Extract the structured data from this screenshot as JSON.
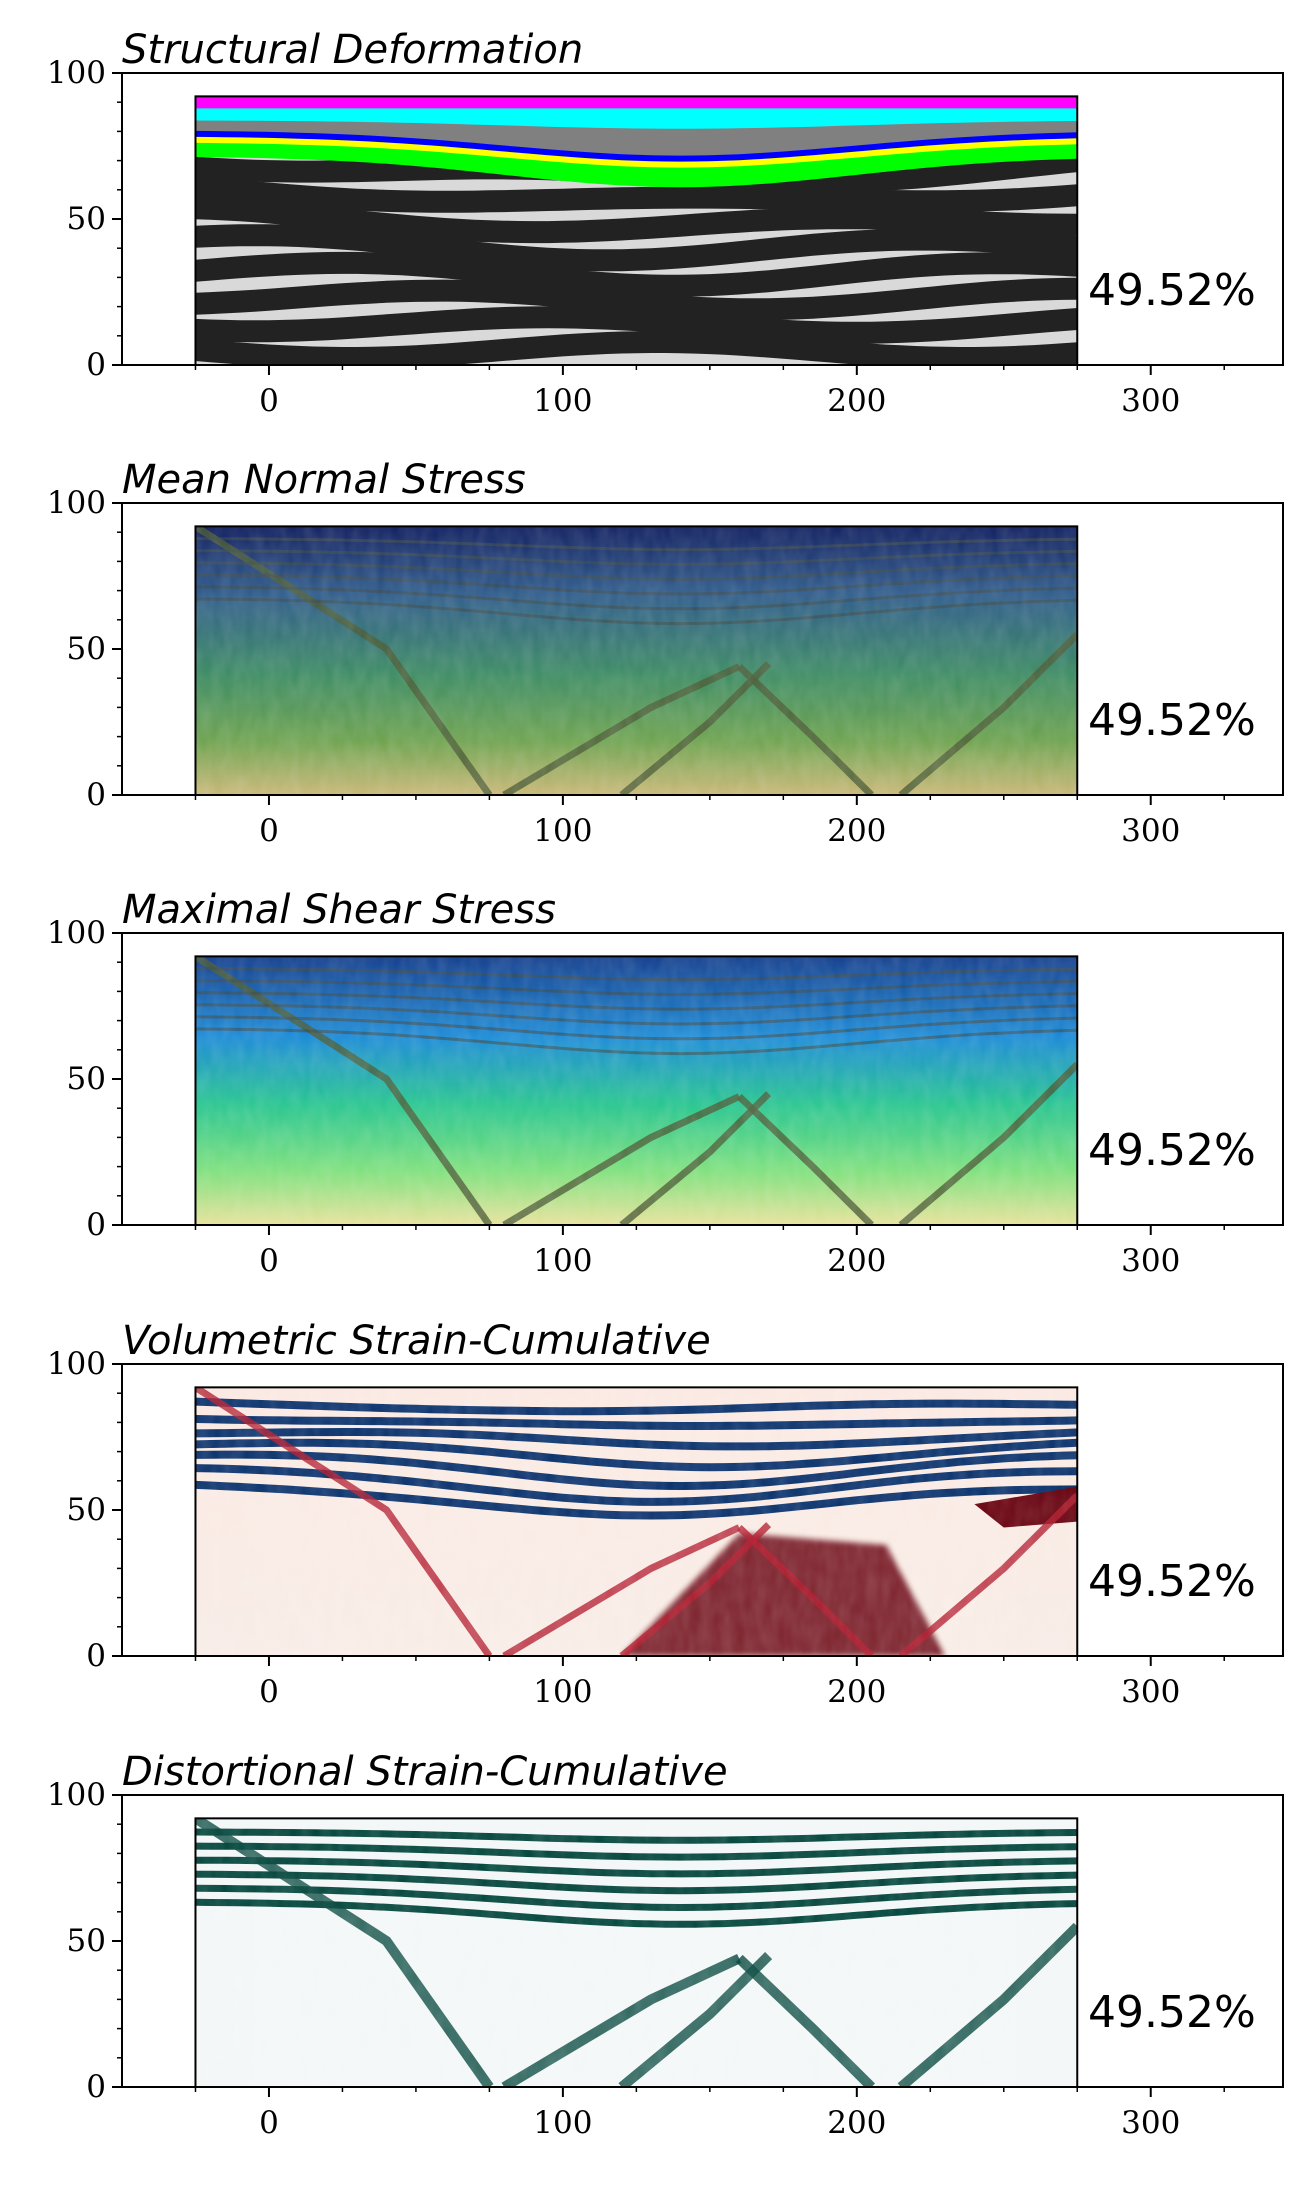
{
  "chart_data": [
    {
      "type": "heatmap",
      "title": "Structural Deformation",
      "annotation": "49.52%",
      "xlim": [
        -50,
        345
      ],
      "ylim": [
        0,
        100
      ],
      "x_ticks": [
        0,
        100,
        200,
        300
      ],
      "y_ticks": [
        0,
        50,
        100
      ],
      "domain_x": [
        -25,
        275
      ],
      "domain_top": 92,
      "grid": false,
      "colormap": "layered-stratigraphy",
      "colors": [
        "#222222",
        "#d9d9d9",
        "#ff00ff",
        "#00ffff",
        "#808080",
        "#0000ff",
        "#ffff00",
        "#00ff00"
      ]
    },
    {
      "type": "heatmap",
      "title": "Mean Normal Stress",
      "annotation": "49.52%",
      "xlim": [
        -50,
        345
      ],
      "ylim": [
        0,
        100
      ],
      "x_ticks": [
        0,
        100,
        200,
        300
      ],
      "y_ticks": [
        0,
        50,
        100
      ],
      "domain_x": [
        -25,
        275
      ],
      "domain_top": 92,
      "grid": false,
      "colormap": "gist_earth",
      "colors": [
        "#0e1d5e",
        "#2d5a8a",
        "#3b8a62",
        "#6da24e",
        "#c9b776"
      ]
    },
    {
      "type": "heatmap",
      "title": "Maximal Shear Stress",
      "annotation": "49.52%",
      "xlim": [
        -50,
        345
      ],
      "ylim": [
        0,
        100
      ],
      "x_ticks": [
        0,
        100,
        200,
        300
      ],
      "y_ticks": [
        0,
        50,
        100
      ],
      "domain_x": [
        -25,
        275
      ],
      "domain_top": 92,
      "grid": false,
      "colormap": "terrain",
      "colors": [
        "#123d8c",
        "#1a8ad6",
        "#25c48e",
        "#7ee07c",
        "#e7e29a"
      ]
    },
    {
      "type": "heatmap",
      "title": "Volumetric Strain-Cumulative",
      "annotation": "49.52%",
      "xlim": [
        -50,
        345
      ],
      "ylim": [
        0,
        100
      ],
      "x_ticks": [
        0,
        100,
        200,
        300
      ],
      "y_ticks": [
        0,
        50,
        100
      ],
      "domain_x": [
        -25,
        275
      ],
      "domain_top": 92,
      "grid": false,
      "colormap": "RdBu",
      "colors": [
        "#08306b",
        "#4f8bc4",
        "#f7f7f7",
        "#d6604d",
        "#67000d"
      ]
    },
    {
      "type": "heatmap",
      "title": "Distortional Strain-Cumulative",
      "annotation": "49.52%",
      "xlim": [
        -50,
        345
      ],
      "ylim": [
        0,
        100
      ],
      "x_ticks": [
        0,
        100,
        200,
        300
      ],
      "y_ticks": [
        0,
        50,
        100
      ],
      "domain_x": [
        -25,
        275
      ],
      "domain_top": 92,
      "grid": false,
      "colormap": "BuGn",
      "colors": [
        "#f3f7f7",
        "#8fd1c0",
        "#2b8f77",
        "#00443a"
      ]
    }
  ]
}
